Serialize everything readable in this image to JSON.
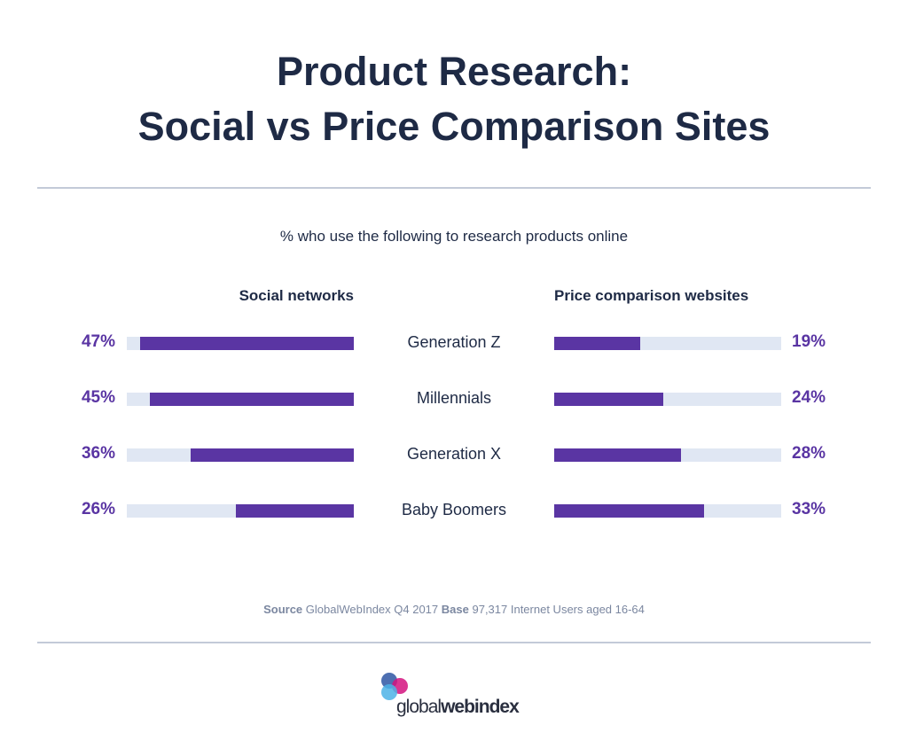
{
  "chart_data": {
    "type": "bar",
    "title_line1": "Product Research:",
    "title_line2": "Social vs Price Comparison Sites",
    "subtitle": "% who use the following to research products online",
    "categories": [
      "Generation Z",
      "Millennials",
      "Generation X",
      "Baby Boomers"
    ],
    "series": [
      {
        "name": "Social networks",
        "values": [
          47,
          45,
          36,
          26
        ],
        "labels": [
          "47%",
          "45%",
          "36%",
          "26%"
        ]
      },
      {
        "name": "Price comparison websites",
        "values": [
          19,
          24,
          28,
          33
        ],
        "labels": [
          "19%",
          "24%",
          "28%",
          "33%"
        ]
      }
    ],
    "xlim": [
      0,
      50
    ],
    "orientation": "horizontal",
    "layout": "diverging-back-to-back",
    "colors": {
      "bar": "#5a35a3",
      "track": "#e0e7f3",
      "text": "#1e2a45",
      "source": "#7b87a0"
    }
  },
  "source": {
    "source_label": "Source",
    "source_text": "GlobalWebIndex Q4 2017",
    "base_label": "Base",
    "base_text": "97,317 Internet Users aged 16-64"
  },
  "logo": {
    "text_light": "global",
    "text_bold": "webindex"
  }
}
